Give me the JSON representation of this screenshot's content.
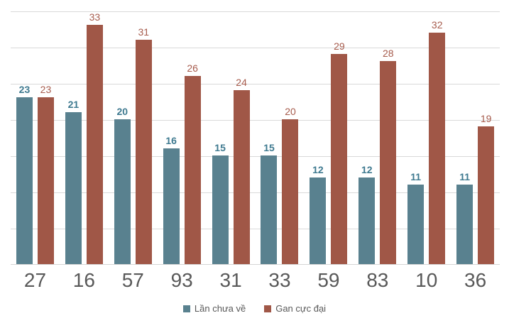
{
  "chart_data": {
    "type": "bar",
    "categories": [
      "27",
      "16",
      "57",
      "93",
      "31",
      "33",
      "59",
      "83",
      "10",
      "36"
    ],
    "series": [
      {
        "name": "Lần chưa về",
        "values": [
          23,
          21,
          20,
          16,
          15,
          15,
          12,
          12,
          11,
          11
        ],
        "color": "#59818F",
        "label_color": "#3F7A90",
        "label_bold": true
      },
      {
        "name": "Gan cực đại",
        "values": [
          23,
          33,
          31,
          26,
          24,
          20,
          29,
          28,
          32,
          19
        ],
        "color": "#A05747",
        "label_color": "#A65B4C",
        "label_bold": false
      }
    ],
    "ylim": [
      0,
      35
    ],
    "grid_step": 5,
    "grid": true,
    "y_axis_labels_visible": false,
    "data_labels": true,
    "legend_position": "bottom"
  },
  "style": {
    "background": "#FFFFFF",
    "gridline_color": "#D9D9D9",
    "axis_line_color": "#D6D6D6",
    "axis_text_color": "#595959",
    "legend_text_color": "#595959"
  }
}
